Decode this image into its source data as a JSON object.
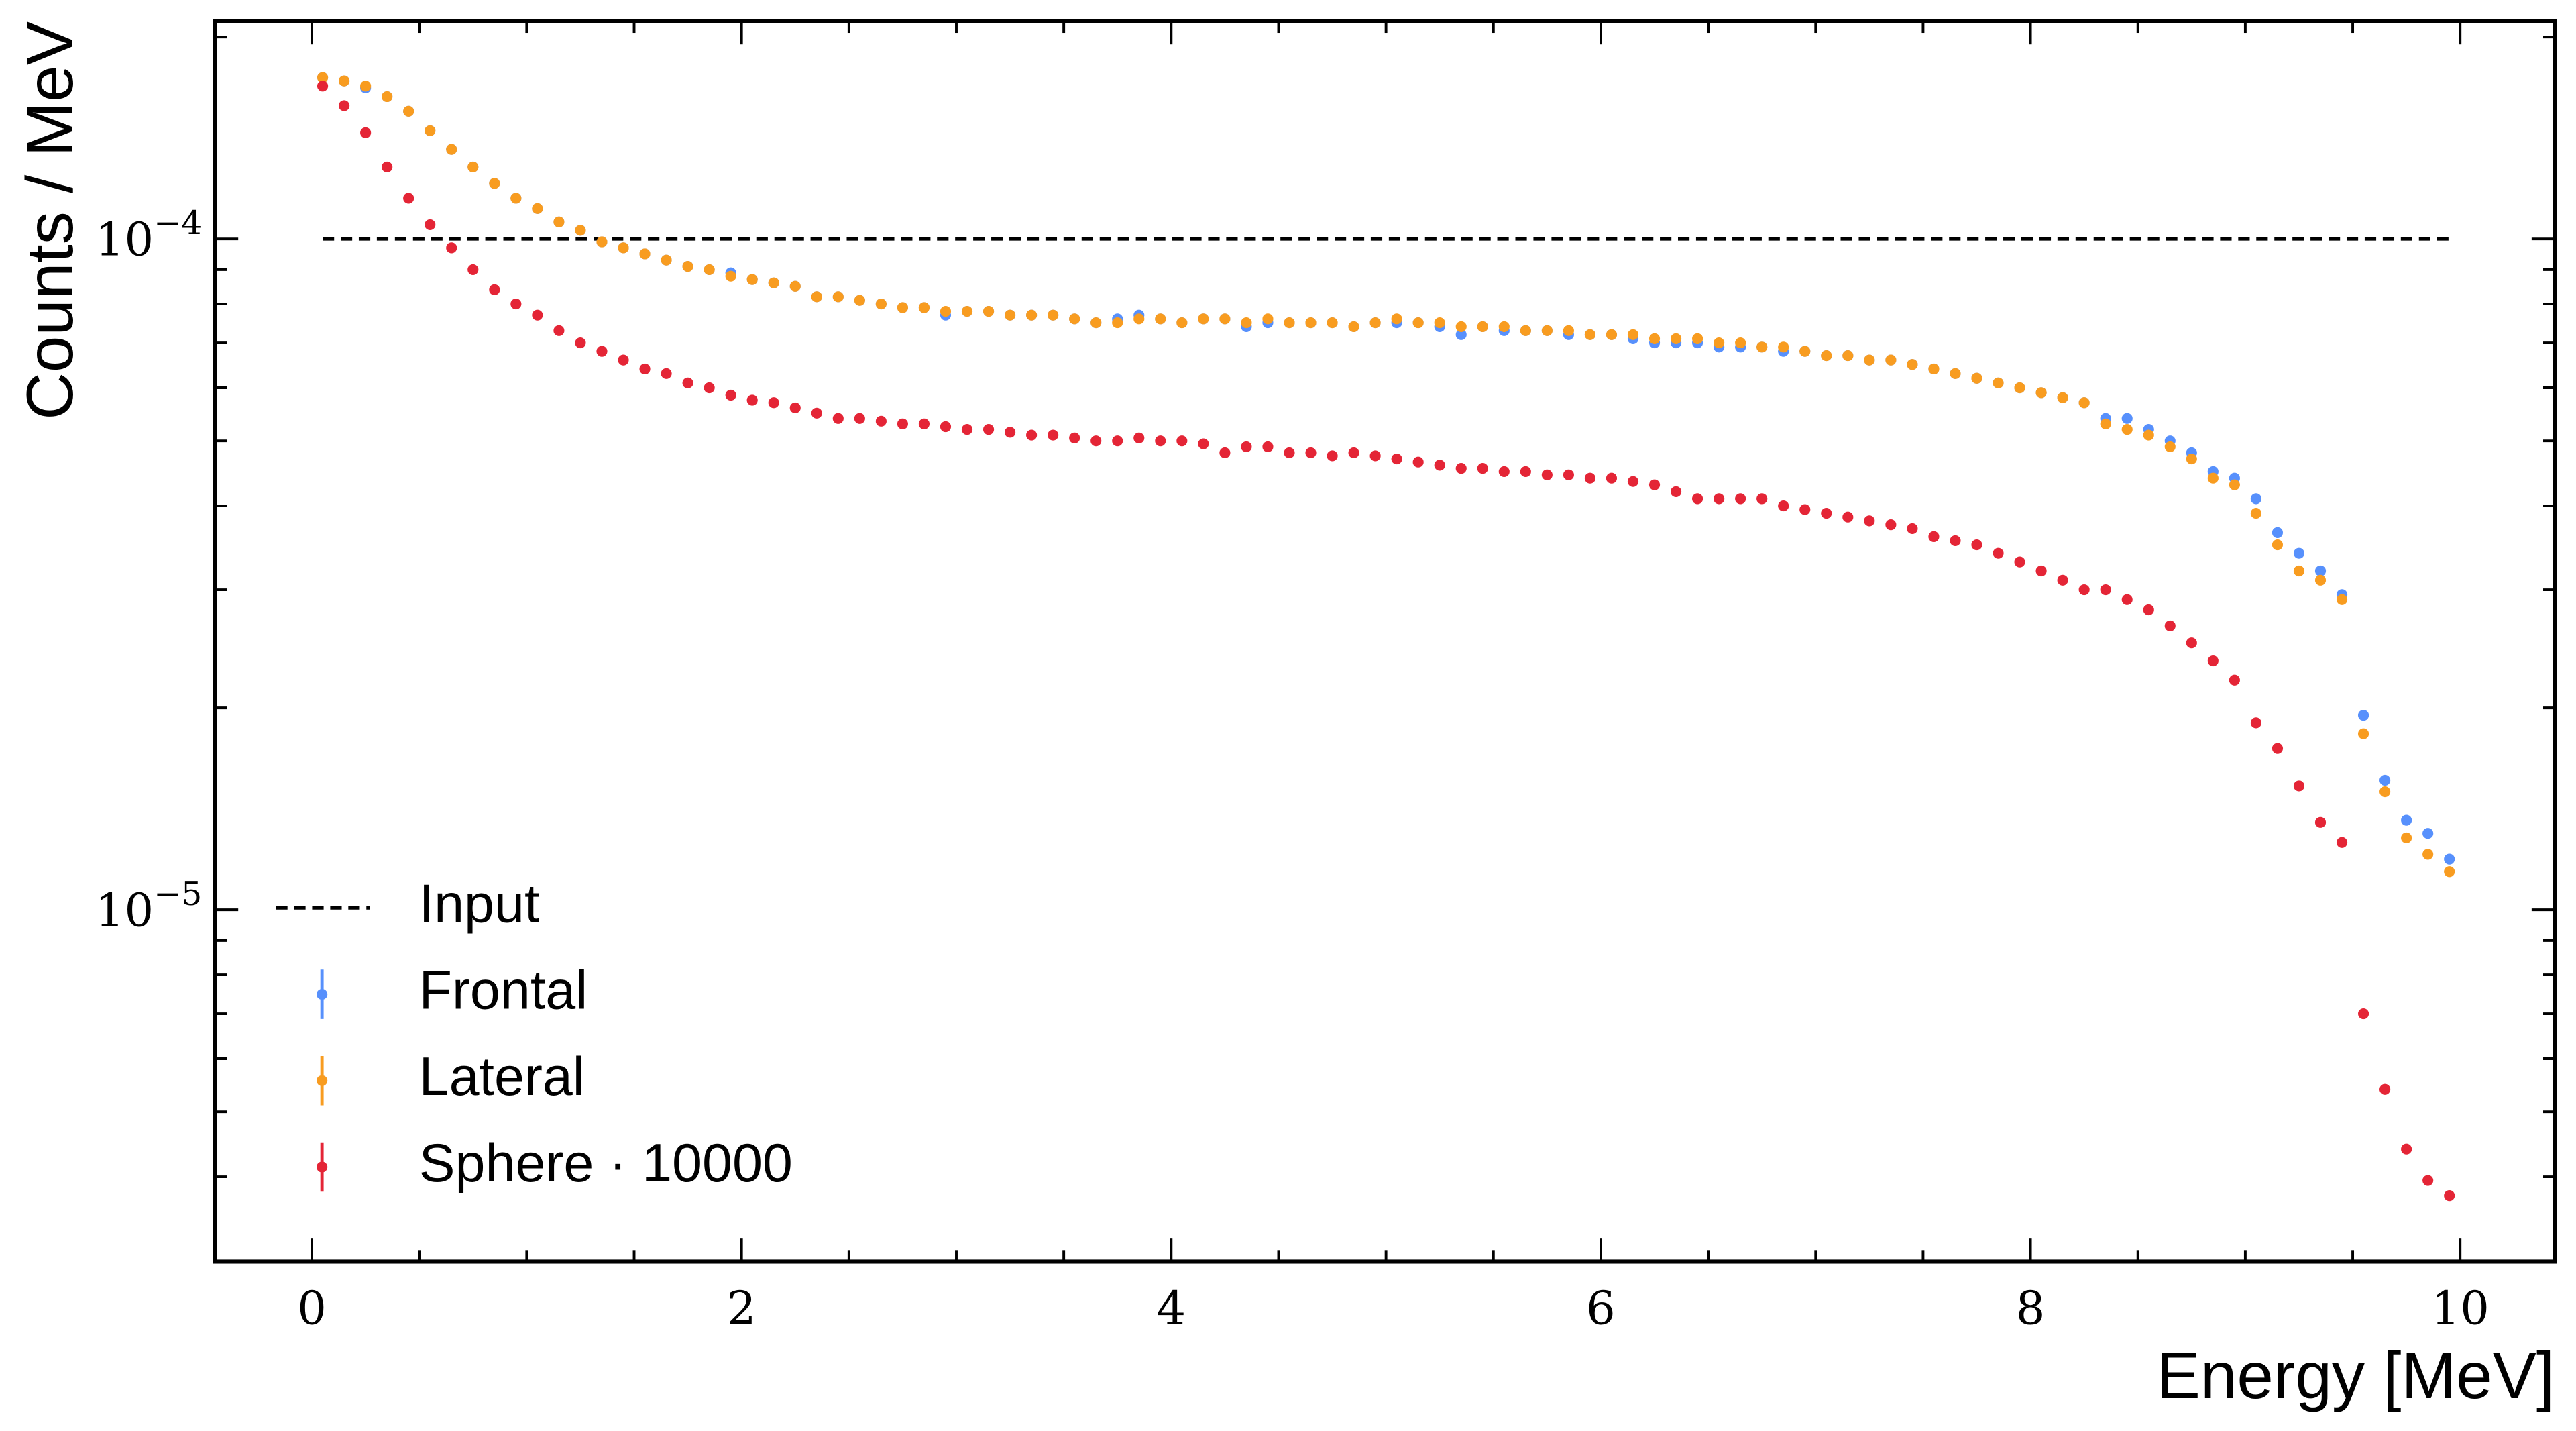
{
  "chart_data": {
    "type": "scatter",
    "y_label": "Counts / MeV",
    "x_label": "Energy [MeV]",
    "x": [
      0.05,
      0.15,
      0.25,
      0.35,
      0.45,
      0.55,
      0.65,
      0.75,
      0.85,
      0.95,
      1.05,
      1.15,
      1.25,
      1.35,
      1.45,
      1.55,
      1.65,
      1.75,
      1.85,
      1.95,
      2.05,
      2.15,
      2.25,
      2.35,
      2.45,
      2.55,
      2.65,
      2.75,
      2.85,
      2.95,
      3.05,
      3.15,
      3.25,
      3.35,
      3.45,
      3.55,
      3.65,
      3.75,
      3.85,
      3.95,
      4.05,
      4.15,
      4.25,
      4.35,
      4.45,
      4.55,
      4.65,
      4.75,
      4.85,
      4.95,
      5.05,
      5.15,
      5.25,
      5.35,
      5.45,
      5.55,
      5.65,
      5.75,
      5.85,
      5.95,
      6.05,
      6.15,
      6.25,
      6.35,
      6.45,
      6.55,
      6.65,
      6.75,
      6.85,
      6.95,
      7.05,
      7.15,
      7.25,
      7.35,
      7.45,
      7.55,
      7.65,
      7.75,
      7.85,
      7.95,
      8.05,
      8.15,
      8.25,
      8.35,
      8.45,
      8.55,
      8.65,
      8.75,
      8.85,
      8.95,
      9.05,
      9.15,
      9.25,
      9.35,
      9.45,
      9.55,
      9.65,
      9.75,
      9.85,
      9.95
    ],
    "series": [
      {
        "name": "Input",
        "color": "#000000",
        "style": "dashed",
        "x": [
          0.05,
          9.95
        ],
        "values": [
          0.0001,
          0.0001
        ]
      },
      {
        "name": "Frontal",
        "color": "#5790fc",
        "style": "points",
        "values": [
          0.000174,
          0.000172,
          0.000168,
          0.000163,
          0.000155,
          0.000145,
          0.000136,
          0.000128,
          0.000121,
          0.000115,
          0.000111,
          0.000106,
          0.000103,
          9.9e-05,
          9.7e-05,
          9.5e-05,
          9.3e-05,
          9.1e-05,
          9e-05,
          8.9e-05,
          8.7e-05,
          8.6e-05,
          8.5e-05,
          8.2e-05,
          8.2e-05,
          8.1e-05,
          8e-05,
          7.9e-05,
          7.9e-05,
          7.7e-05,
          7.8e-05,
          7.8e-05,
          7.7e-05,
          7.7e-05,
          7.7e-05,
          7.6e-05,
          7.5e-05,
          7.6e-05,
          7.7e-05,
          7.6e-05,
          7.5e-05,
          7.6e-05,
          7.6e-05,
          7.4e-05,
          7.5e-05,
          7.5e-05,
          7.5e-05,
          7.5e-05,
          7.4e-05,
          7.5e-05,
          7.5e-05,
          7.5e-05,
          7.4e-05,
          7.2e-05,
          7.4e-05,
          7.3e-05,
          7.3e-05,
          7.3e-05,
          7.2e-05,
          7.2e-05,
          7.2e-05,
          7.1e-05,
          7e-05,
          7e-05,
          7e-05,
          6.9e-05,
          6.9e-05,
          6.9e-05,
          6.8e-05,
          6.8e-05,
          6.7e-05,
          6.7e-05,
          6.6e-05,
          6.6e-05,
          6.5e-05,
          6.4e-05,
          6.3e-05,
          6.2e-05,
          6.1e-05,
          6e-05,
          5.9e-05,
          5.8e-05,
          5.7e-05,
          5.4e-05,
          5.4e-05,
          5.2e-05,
          5e-05,
          4.8e-05,
          4.5e-05,
          4.4e-05,
          4.1e-05,
          3.65e-05,
          3.4e-05,
          3.2e-05,
          2.95e-05,
          1.95e-05,
          1.56e-05,
          1.36e-05,
          1.3e-05,
          1.19e-05
        ]
      },
      {
        "name": "Lateral",
        "color": "#f89c20",
        "style": "points",
        "values": [
          0.000174,
          0.000172,
          0.000169,
          0.000163,
          0.000155,
          0.000145,
          0.000136,
          0.000128,
          0.000121,
          0.000115,
          0.000111,
          0.000106,
          0.000103,
          9.9e-05,
          9.7e-05,
          9.5e-05,
          9.3e-05,
          9.1e-05,
          9e-05,
          8.8e-05,
          8.7e-05,
          8.6e-05,
          8.5e-05,
          8.2e-05,
          8.2e-05,
          8.1e-05,
          8e-05,
          7.9e-05,
          7.9e-05,
          7.8e-05,
          7.8e-05,
          7.8e-05,
          7.7e-05,
          7.7e-05,
          7.7e-05,
          7.6e-05,
          7.5e-05,
          7.5e-05,
          7.6e-05,
          7.6e-05,
          7.5e-05,
          7.6e-05,
          7.6e-05,
          7.5e-05,
          7.6e-05,
          7.5e-05,
          7.5e-05,
          7.5e-05,
          7.4e-05,
          7.5e-05,
          7.6e-05,
          7.5e-05,
          7.5e-05,
          7.4e-05,
          7.4e-05,
          7.4e-05,
          7.3e-05,
          7.3e-05,
          7.3e-05,
          7.2e-05,
          7.2e-05,
          7.2e-05,
          7.1e-05,
          7.1e-05,
          7.1e-05,
          7e-05,
          7e-05,
          6.9e-05,
          6.9e-05,
          6.8e-05,
          6.7e-05,
          6.7e-05,
          6.6e-05,
          6.6e-05,
          6.5e-05,
          6.4e-05,
          6.3e-05,
          6.2e-05,
          6.1e-05,
          6e-05,
          5.9e-05,
          5.8e-05,
          5.7e-05,
          5.3e-05,
          5.2e-05,
          5.1e-05,
          4.9e-05,
          4.7e-05,
          4.4e-05,
          4.3e-05,
          3.9e-05,
          3.5e-05,
          3.2e-05,
          3.1e-05,
          2.9e-05,
          1.83e-05,
          1.5e-05,
          1.28e-05,
          1.21e-05,
          1.14e-05
        ]
      },
      {
        "name": "Sphere · 10000",
        "color": "#e42536",
        "style": "points",
        "values": [
          0.000169,
          0.000158,
          0.000144,
          0.000128,
          0.000115,
          0.000105,
          9.7e-05,
          9e-05,
          8.4e-05,
          8e-05,
          7.7e-05,
          7.3e-05,
          7e-05,
          6.8e-05,
          6.6e-05,
          6.4e-05,
          6.3e-05,
          6.1e-05,
          6e-05,
          5.85e-05,
          5.75e-05,
          5.7e-05,
          5.6e-05,
          5.5e-05,
          5.4e-05,
          5.4e-05,
          5.35e-05,
          5.3e-05,
          5.3e-05,
          5.25e-05,
          5.2e-05,
          5.2e-05,
          5.15e-05,
          5.1e-05,
          5.1e-05,
          5.05e-05,
          5e-05,
          5e-05,
          5.05e-05,
          5e-05,
          5e-05,
          4.95e-05,
          4.8e-05,
          4.9e-05,
          4.9e-05,
          4.8e-05,
          4.8e-05,
          4.75e-05,
          4.8e-05,
          4.75e-05,
          4.7e-05,
          4.65e-05,
          4.6e-05,
          4.55e-05,
          4.55e-05,
          4.5e-05,
          4.5e-05,
          4.45e-05,
          4.45e-05,
          4.4e-05,
          4.4e-05,
          4.35e-05,
          4.3e-05,
          4.2e-05,
          4.1e-05,
          4.1e-05,
          4.1e-05,
          4.1e-05,
          4e-05,
          3.95e-05,
          3.9e-05,
          3.85e-05,
          3.8e-05,
          3.75e-05,
          3.7e-05,
          3.6e-05,
          3.55e-05,
          3.5e-05,
          3.4e-05,
          3.3e-05,
          3.2e-05,
          3.1e-05,
          3e-05,
          3e-05,
          2.9e-05,
          2.8e-05,
          2.65e-05,
          2.5e-05,
          2.35e-05,
          2.2e-05,
          1.9e-05,
          1.74e-05,
          1.53e-05,
          1.35e-05,
          1.26e-05,
          7e-06,
          5.4e-06,
          4.4e-06,
          3.95e-06,
          3.75e-06
        ]
      }
    ],
    "xlim": [
      -0.45,
      10.44
    ],
    "ylim": [
      2.99e-06,
      0.000211
    ],
    "ylog": true,
    "xticks": [
      0,
      2,
      4,
      6,
      8,
      10
    ],
    "xminorticks": [
      0.5,
      1,
      1.5,
      2.5,
      3,
      3.5,
      4.5,
      5,
      5.5,
      6.5,
      7,
      7.5,
      8.5,
      9,
      9.5
    ],
    "yticks": [
      {
        "value": 1e-05,
        "label": "10−5"
      },
      {
        "value": 0.0001,
        "label": "10−4"
      }
    ],
    "yminorticks": [
      4e-06,
      5e-06,
      6e-06,
      7e-06,
      8e-06,
      9e-06,
      2e-05,
      3e-05,
      4e-05,
      5e-05,
      6e-05,
      7e-05,
      8e-05,
      9e-05,
      0.0002
    ],
    "legend": "lower left"
  }
}
